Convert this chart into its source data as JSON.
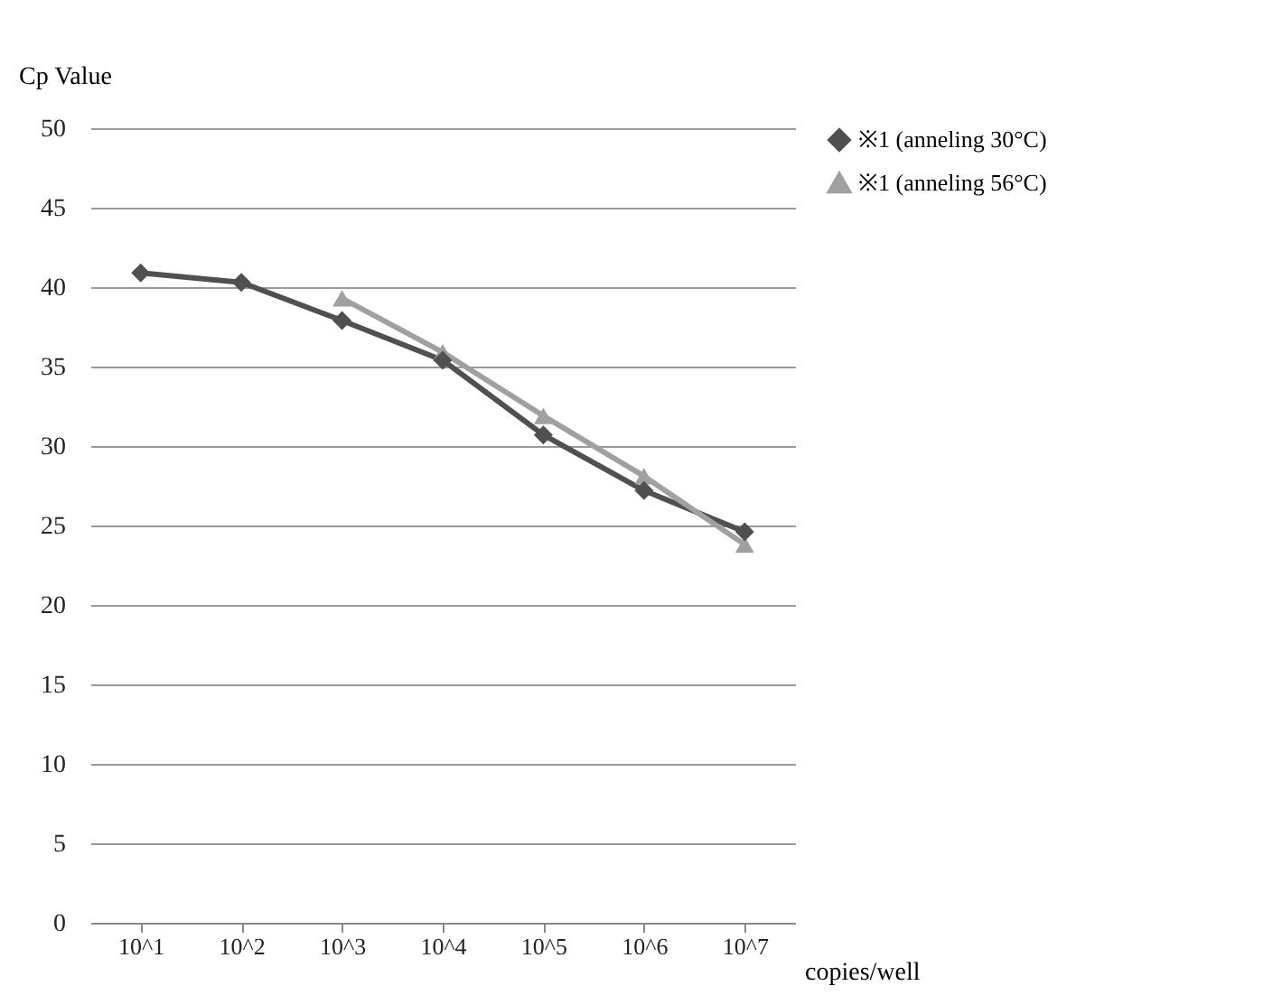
{
  "chart_data": {
    "type": "line",
    "ylabel": "Cp Value",
    "xlabel": "copies/well",
    "categories": [
      "10^1",
      "10^2",
      "10^3",
      "10^4",
      "10^5",
      "10^6",
      "10^7"
    ],
    "series": [
      {
        "name": "※1 (anneling 30°C)",
        "color": "#505050",
        "marker": "diamond",
        "values": [
          40.9,
          40.3,
          37.9,
          35.4,
          30.7,
          27.2,
          24.6
        ]
      },
      {
        "name": "※1 (anneling 56°C)",
        "color": "#a0a0a0",
        "marker": "triangle",
        "values": [
          null,
          null,
          39.3,
          35.9,
          31.9,
          28.1,
          23.8
        ]
      }
    ],
    "ylim": [
      0,
      50
    ],
    "yticks": [
      0,
      5,
      10,
      15,
      20,
      25,
      30,
      35,
      40,
      45,
      50
    ],
    "grid": "y",
    "legend": "right",
    "line_style": "solid"
  }
}
